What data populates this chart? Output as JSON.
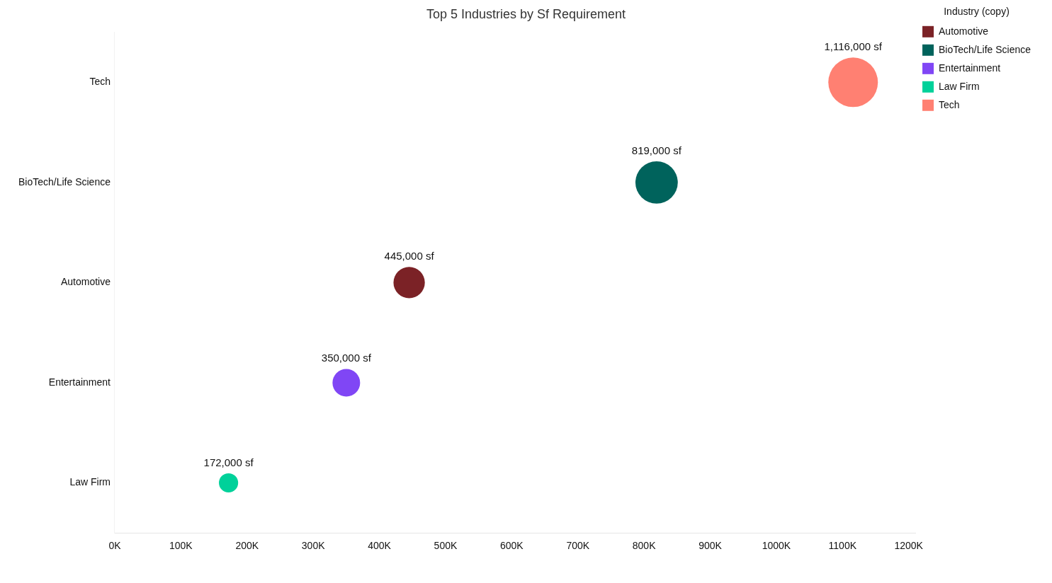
{
  "chart_data": {
    "type": "bubble",
    "orientation": "horizontal",
    "title": "Top 5 Industries by Sf Requirement",
    "legend_title": "Industry (copy)",
    "legend": "top right",
    "grid": false,
    "categories": [
      "Tech",
      "BioTech/Life Science",
      "Automotive",
      "Entertainment",
      "Law Firm"
    ],
    "xlim": [
      0,
      1210000
    ],
    "xticks": [
      {
        "value": 0,
        "label": "0K"
      },
      {
        "value": 100000,
        "label": "100K"
      },
      {
        "value": 200000,
        "label": "200K"
      },
      {
        "value": 300000,
        "label": "300K"
      },
      {
        "value": 400000,
        "label": "400K"
      },
      {
        "value": 500000,
        "label": "500K"
      },
      {
        "value": 600000,
        "label": "600K"
      },
      {
        "value": 700000,
        "label": "700K"
      },
      {
        "value": 800000,
        "label": "800K"
      },
      {
        "value": 900000,
        "label": "900K"
      },
      {
        "value": 1000000,
        "label": "1000K"
      },
      {
        "value": 1100000,
        "label": "1100K"
      },
      {
        "value": 1200000,
        "label": "1200K"
      }
    ],
    "series": [
      {
        "name": "Automotive",
        "color": "#7b2226",
        "values": [
          null,
          null,
          445000,
          null,
          null
        ],
        "sizes": [
          null,
          null,
          0.4,
          null,
          null
        ],
        "value_labels": [
          null,
          null,
          "445,000 sf",
          null,
          null
        ]
      },
      {
        "name": "BioTech/Life Science",
        "color": "#00635c",
        "values": [
          null,
          819000,
          null,
          null,
          null
        ],
        "sizes": [
          null,
          0.73,
          null,
          null,
          null
        ],
        "value_labels": [
          null,
          "819,000 sf",
          null,
          null,
          null
        ]
      },
      {
        "name": "Entertainment",
        "color": "#8046f5",
        "values": [
          null,
          null,
          null,
          350000,
          null
        ],
        "sizes": [
          null,
          null,
          null,
          0.31,
          null
        ],
        "value_labels": [
          null,
          null,
          null,
          "350,000 sf",
          null
        ]
      },
      {
        "name": "Law Firm",
        "color": "#00d19a",
        "values": [
          null,
          null,
          null,
          null,
          172000
        ],
        "sizes": [
          null,
          null,
          null,
          null,
          0.15
        ],
        "value_labels": [
          null,
          null,
          null,
          null,
          "172,000 sf"
        ]
      },
      {
        "name": "Tech",
        "color": "#ff8072",
        "values": [
          1116000,
          null,
          null,
          null,
          null
        ],
        "sizes": [
          1,
          null,
          null,
          null,
          null
        ],
        "value_labels": [
          "1,116,000 sf",
          null,
          null,
          null,
          null
        ]
      }
    ]
  }
}
